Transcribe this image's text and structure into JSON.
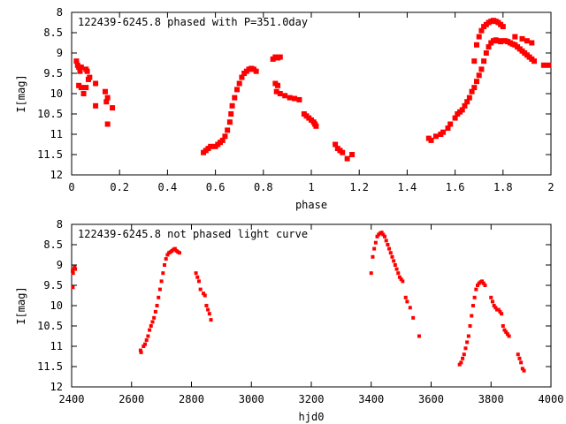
{
  "chart_data": [
    {
      "type": "scatter",
      "title": "122439-6245.8 phased with P=351.0day",
      "xlabel": "phase",
      "ylabel": "I[mag]",
      "xlim": [
        0,
        2
      ],
      "ylim": [
        12,
        8
      ],
      "y_inverted": true,
      "grid": false,
      "color": "#ff0000",
      "xticks": [
        "0",
        "0.2",
        "0.4",
        "0.6",
        "0.8",
        "1",
        "1.2",
        "1.4",
        "1.6",
        "1.8",
        "2"
      ],
      "yticks": [
        "8",
        "8.5",
        "9",
        "9.5",
        "10",
        "10.5",
        "11",
        "11.5",
        "12"
      ],
      "points": [
        [
          0.02,
          9.2
        ],
        [
          0.025,
          9.3
        ],
        [
          0.03,
          9.35
        ],
        [
          0.035,
          9.45
        ],
        [
          0.04,
          9.35
        ],
        [
          0.03,
          9.8
        ],
        [
          0.04,
          9.85
        ],
        [
          0.06,
          9.85
        ],
        [
          0.05,
          10.0
        ],
        [
          0.06,
          9.4
        ],
        [
          0.065,
          9.45
        ],
        [
          0.07,
          9.65
        ],
        [
          0.075,
          9.6
        ],
        [
          0.1,
          9.75
        ],
        [
          0.1,
          10.3
        ],
        [
          0.14,
          9.95
        ],
        [
          0.145,
          10.2
        ],
        [
          0.15,
          10.1
        ],
        [
          0.15,
          10.75
        ],
        [
          0.17,
          10.35
        ],
        [
          0.55,
          11.45
        ],
        [
          0.56,
          11.4
        ],
        [
          0.57,
          11.35
        ],
        [
          0.58,
          11.3
        ],
        [
          0.6,
          11.3
        ],
        [
          0.61,
          11.25
        ],
        [
          0.62,
          11.2
        ],
        [
          0.63,
          11.15
        ],
        [
          0.64,
          11.05
        ],
        [
          0.65,
          10.9
        ],
        [
          0.66,
          10.7
        ],
        [
          0.665,
          10.5
        ],
        [
          0.67,
          10.3
        ],
        [
          0.68,
          10.1
        ],
        [
          0.69,
          9.9
        ],
        [
          0.7,
          9.75
        ],
        [
          0.71,
          9.6
        ],
        [
          0.72,
          9.5
        ],
        [
          0.73,
          9.45
        ],
        [
          0.74,
          9.4
        ],
        [
          0.75,
          9.38
        ],
        [
          0.76,
          9.4
        ],
        [
          0.77,
          9.45
        ],
        [
          0.84,
          9.15
        ],
        [
          0.85,
          9.1
        ],
        [
          0.86,
          9.12
        ],
        [
          0.87,
          9.1
        ],
        [
          0.85,
          9.75
        ],
        [
          0.86,
          9.8
        ],
        [
          0.855,
          9.95
        ],
        [
          0.87,
          10.0
        ],
        [
          0.89,
          10.05
        ],
        [
          0.91,
          10.1
        ],
        [
          0.93,
          10.12
        ],
        [
          0.95,
          10.15
        ],
        [
          0.97,
          10.5
        ],
        [
          0.98,
          10.55
        ],
        [
          0.99,
          10.6
        ],
        [
          1.0,
          10.65
        ],
        [
          1.01,
          10.7
        ],
        [
          1.015,
          10.75
        ],
        [
          1.02,
          10.8
        ],
        [
          1.1,
          11.25
        ],
        [
          1.11,
          11.35
        ],
        [
          1.12,
          11.4
        ],
        [
          1.13,
          11.45
        ],
        [
          1.15,
          11.6
        ],
        [
          1.17,
          11.5
        ],
        [
          1.49,
          11.1
        ],
        [
          1.5,
          11.15
        ],
        [
          1.52,
          11.05
        ],
        [
          1.54,
          11.0
        ],
        [
          1.55,
          10.95
        ],
        [
          1.57,
          10.85
        ],
        [
          1.58,
          10.75
        ],
        [
          1.6,
          10.6
        ],
        [
          1.61,
          10.5
        ],
        [
          1.62,
          10.45
        ],
        [
          1.63,
          10.4
        ],
        [
          1.64,
          10.3
        ],
        [
          1.65,
          10.2
        ],
        [
          1.66,
          10.1
        ],
        [
          1.67,
          9.95
        ],
        [
          1.68,
          9.85
        ],
        [
          1.69,
          9.7
        ],
        [
          1.7,
          9.55
        ],
        [
          1.71,
          9.4
        ],
        [
          1.72,
          9.2
        ],
        [
          1.73,
          9.0
        ],
        [
          1.74,
          8.85
        ],
        [
          1.75,
          8.75
        ],
        [
          1.76,
          8.7
        ],
        [
          1.77,
          8.68
        ],
        [
          1.78,
          8.7
        ],
        [
          1.79,
          8.72
        ],
        [
          1.8,
          8.7
        ],
        [
          1.81,
          8.7
        ],
        [
          1.82,
          8.72
        ],
        [
          1.83,
          8.75
        ],
        [
          1.84,
          8.78
        ],
        [
          1.85,
          8.8
        ],
        [
          1.86,
          8.85
        ],
        [
          1.87,
          8.9
        ],
        [
          1.88,
          8.95
        ],
        [
          1.89,
          9.0
        ],
        [
          1.9,
          9.05
        ],
        [
          1.91,
          9.1
        ],
        [
          1.92,
          9.15
        ],
        [
          1.93,
          9.2
        ],
        [
          1.97,
          9.3
        ],
        [
          1.99,
          9.3
        ],
        [
          1.68,
          9.2
        ],
        [
          1.69,
          8.8
        ],
        [
          1.7,
          8.6
        ],
        [
          1.71,
          8.45
        ],
        [
          1.72,
          8.35
        ],
        [
          1.73,
          8.3
        ],
        [
          1.74,
          8.25
        ],
        [
          1.75,
          8.22
        ],
        [
          1.76,
          8.2
        ],
        [
          1.77,
          8.22
        ],
        [
          1.78,
          8.25
        ],
        [
          1.79,
          8.3
        ],
        [
          1.8,
          8.35
        ],
        [
          1.85,
          8.6
        ],
        [
          1.88,
          8.65
        ],
        [
          1.9,
          8.7
        ],
        [
          1.92,
          8.75
        ]
      ]
    },
    {
      "type": "scatter",
      "title": "122439-6245.8 not phased light curve",
      "xlabel": "hjd0",
      "ylabel": "I[mag]",
      "xlim": [
        2400,
        4000
      ],
      "ylim": [
        12,
        8
      ],
      "y_inverted": true,
      "grid": false,
      "color": "#ff0000",
      "xticks": [
        "2400",
        "2600",
        "2800",
        "3000",
        "3200",
        "3400",
        "3600",
        "3800",
        "4000"
      ],
      "yticks": [
        "8",
        "8.5",
        "9",
        "9.5",
        "10",
        "10.5",
        "11",
        "11.5",
        "12"
      ],
      "points": [
        [
          2403,
          9.15
        ],
        [
          2405,
          9.2
        ],
        [
          2408,
          9.1
        ],
        [
          2410,
          9.05
        ],
        [
          2412,
          9.1
        ],
        [
          2404,
          9.55
        ],
        [
          2630,
          11.1
        ],
        [
          2632,
          11.15
        ],
        [
          2640,
          11.0
        ],
        [
          2645,
          10.95
        ],
        [
          2650,
          10.85
        ],
        [
          2655,
          10.75
        ],
        [
          2660,
          10.6
        ],
        [
          2665,
          10.5
        ],
        [
          2670,
          10.4
        ],
        [
          2675,
          10.3
        ],
        [
          2680,
          10.15
        ],
        [
          2685,
          10.0
        ],
        [
          2690,
          9.8
        ],
        [
          2695,
          9.6
        ],
        [
          2700,
          9.4
        ],
        [
          2705,
          9.2
        ],
        [
          2710,
          9.0
        ],
        [
          2715,
          8.85
        ],
        [
          2720,
          8.75
        ],
        [
          2725,
          8.7
        ],
        [
          2730,
          8.68
        ],
        [
          2735,
          8.65
        ],
        [
          2740,
          8.62
        ],
        [
          2745,
          8.6
        ],
        [
          2750,
          8.65
        ],
        [
          2755,
          8.68
        ],
        [
          2760,
          8.7
        ],
        [
          2815,
          9.2
        ],
        [
          2820,
          9.3
        ],
        [
          2825,
          9.4
        ],
        [
          2830,
          9.6
        ],
        [
          2840,
          9.7
        ],
        [
          2845,
          9.75
        ],
        [
          2850,
          10.0
        ],
        [
          2855,
          10.1
        ],
        [
          2860,
          10.2
        ],
        [
          2865,
          10.35
        ],
        [
          3400,
          9.2
        ],
        [
          3405,
          8.8
        ],
        [
          3410,
          8.6
        ],
        [
          3415,
          8.45
        ],
        [
          3420,
          8.3
        ],
        [
          3425,
          8.25
        ],
        [
          3430,
          8.22
        ],
        [
          3435,
          8.2
        ],
        [
          3440,
          8.25
        ],
        [
          3445,
          8.3
        ],
        [
          3450,
          8.4
        ],
        [
          3455,
          8.5
        ],
        [
          3460,
          8.6
        ],
        [
          3465,
          8.7
        ],
        [
          3470,
          8.8
        ],
        [
          3475,
          8.9
        ],
        [
          3480,
          9.0
        ],
        [
          3485,
          9.1
        ],
        [
          3490,
          9.2
        ],
        [
          3495,
          9.3
        ],
        [
          3500,
          9.35
        ],
        [
          3505,
          9.4
        ],
        [
          3515,
          9.8
        ],
        [
          3520,
          9.9
        ],
        [
          3530,
          10.05
        ],
        [
          3540,
          10.3
        ],
        [
          3560,
          10.75
        ],
        [
          3695,
          11.45
        ],
        [
          3700,
          11.4
        ],
        [
          3705,
          11.3
        ],
        [
          3710,
          11.2
        ],
        [
          3715,
          11.05
        ],
        [
          3720,
          10.9
        ],
        [
          3725,
          10.75
        ],
        [
          3730,
          10.5
        ],
        [
          3735,
          10.25
        ],
        [
          3740,
          10.0
        ],
        [
          3745,
          9.8
        ],
        [
          3750,
          9.6
        ],
        [
          3755,
          9.5
        ],
        [
          3760,
          9.45
        ],
        [
          3765,
          9.42
        ],
        [
          3770,
          9.4
        ],
        [
          3775,
          9.45
        ],
        [
          3780,
          9.5
        ],
        [
          3800,
          9.8
        ],
        [
          3805,
          9.9
        ],
        [
          3810,
          10.0
        ],
        [
          3815,
          10.05
        ],
        [
          3820,
          10.1
        ],
        [
          3825,
          10.1
        ],
        [
          3830,
          10.15
        ],
        [
          3835,
          10.2
        ],
        [
          3840,
          10.5
        ],
        [
          3845,
          10.6
        ],
        [
          3850,
          10.65
        ],
        [
          3855,
          10.7
        ],
        [
          3860,
          10.75
        ],
        [
          3890,
          11.2
        ],
        [
          3895,
          11.3
        ],
        [
          3900,
          11.4
        ],
        [
          3905,
          11.55
        ],
        [
          3910,
          11.6
        ]
      ]
    }
  ]
}
